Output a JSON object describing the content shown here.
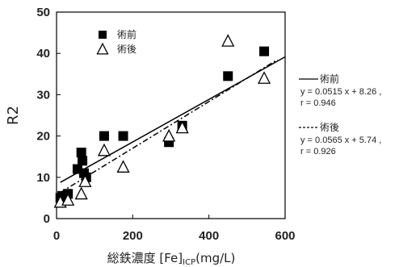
{
  "chart_data": {
    "type": "scatter",
    "title": "",
    "xlabel": {
      "main": "総鉄濃度 [Fe]",
      "sub": "ICP",
      "unit": "(mg/L)"
    },
    "ylabel": "R2",
    "xlim": [
      0,
      600
    ],
    "ylim": [
      0,
      50
    ],
    "xticks": [
      0,
      200,
      400,
      600
    ],
    "yticks": [
      0,
      10,
      20,
      30,
      40,
      50
    ],
    "grid": false,
    "legend_position": "top-left",
    "series": [
      {
        "name": "術前",
        "marker": "filled-square",
        "color": "#000000",
        "points": [
          {
            "x": 10,
            "y": 5
          },
          {
            "x": 15,
            "y": 5.5
          },
          {
            "x": 30,
            "y": 6
          },
          {
            "x": 55,
            "y": 12
          },
          {
            "x": 65,
            "y": 16
          },
          {
            "x": 68,
            "y": 14
          },
          {
            "x": 72,
            "y": 11
          },
          {
            "x": 78,
            "y": 10
          },
          {
            "x": 125,
            "y": 20
          },
          {
            "x": 175,
            "y": 20
          },
          {
            "x": 295,
            "y": 18.5
          },
          {
            "x": 330,
            "y": 22.5
          },
          {
            "x": 450,
            "y": 34.5
          },
          {
            "x": 545,
            "y": 40.5
          }
        ]
      },
      {
        "name": "術後",
        "marker": "open-triangle",
        "color": "#000000",
        "points": [
          {
            "x": 10,
            "y": 4
          },
          {
            "x": 30,
            "y": 4.5
          },
          {
            "x": 65,
            "y": 6
          },
          {
            "x": 75,
            "y": 9
          },
          {
            "x": 125,
            "y": 16.5
          },
          {
            "x": 175,
            "y": 12.5
          },
          {
            "x": 295,
            "y": 20
          },
          {
            "x": 330,
            "y": 22
          },
          {
            "x": 450,
            "y": 43
          },
          {
            "x": 545,
            "y": 34
          }
        ]
      }
    ],
    "fits": [
      {
        "series": "術前",
        "style": "solid",
        "slope": 0.0515,
        "intercept": 8.26,
        "x_range": [
          10,
          600
        ],
        "label": "術前",
        "equation": "y = 0.0515 x + 8.26 ,",
        "r": "r = 0.946"
      },
      {
        "series": "術後",
        "style": "dash-dot",
        "slope": 0.0565,
        "intercept": 5.74,
        "x_range": [
          10,
          580
        ],
        "label": "術後",
        "equation": "y = 0.0565 x + 5.74 ,",
        "r": "r = 0.926"
      }
    ]
  }
}
